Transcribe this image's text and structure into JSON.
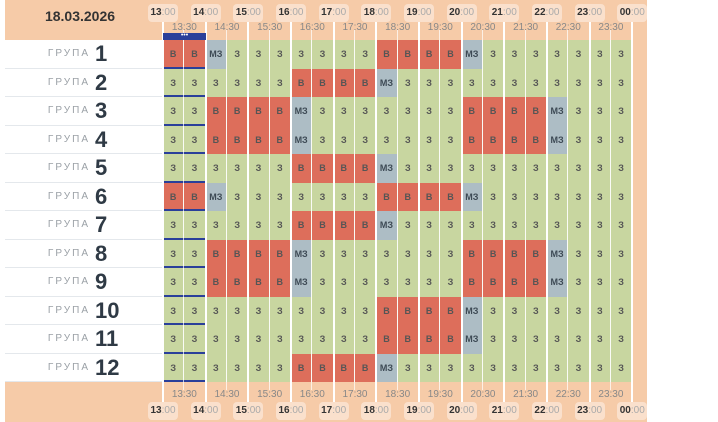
{
  "date": "18.03.2026",
  "group_label": "ГРУПА",
  "marker_label": "•••",
  "hours": [
    "13",
    "14",
    "15",
    "16",
    "17",
    "18",
    "19",
    "20",
    "21",
    "22",
    "23",
    "00"
  ],
  "hour_suffix": ":00",
  "half_hours": [
    "13:30",
    "14:30",
    "15:30",
    "16:30",
    "17:30",
    "18:30",
    "19:30",
    "20:30",
    "21:30",
    "22:30",
    "23:30"
  ],
  "legend": {
    "З": "Z",
    "В": "V",
    "МЗ": "M"
  },
  "colors": {
    "З": "#c8d6a0",
    "В": "#dd6e5b",
    "МЗ": "#adbdc5",
    "header": "#f6cba8",
    "marker": "#2a3f9a"
  },
  "groups": [
    {
      "num": "1",
      "cells": [
        "В",
        "В",
        "МЗ",
        "З",
        "З",
        "З",
        "З",
        "З",
        "З",
        "З",
        "В",
        "В",
        "В",
        "В",
        "МЗ",
        "З",
        "З",
        "З",
        "З",
        "З",
        "З",
        "З"
      ]
    },
    {
      "num": "2",
      "cells": [
        "З",
        "З",
        "З",
        "З",
        "З",
        "З",
        "В",
        "В",
        "В",
        "В",
        "МЗ",
        "З",
        "З",
        "З",
        "З",
        "З",
        "З",
        "З",
        "З",
        "З",
        "З",
        "З"
      ]
    },
    {
      "num": "3",
      "cells": [
        "З",
        "З",
        "В",
        "В",
        "В",
        "В",
        "МЗ",
        "З",
        "З",
        "З",
        "З",
        "З",
        "З",
        "З",
        "В",
        "В",
        "В",
        "В",
        "МЗ",
        "З",
        "З",
        "З"
      ]
    },
    {
      "num": "4",
      "cells": [
        "З",
        "З",
        "В",
        "В",
        "В",
        "В",
        "МЗ",
        "З",
        "З",
        "З",
        "З",
        "З",
        "З",
        "З",
        "В",
        "В",
        "В",
        "В",
        "МЗ",
        "З",
        "З",
        "З"
      ]
    },
    {
      "num": "5",
      "cells": [
        "З",
        "З",
        "З",
        "З",
        "З",
        "З",
        "В",
        "В",
        "В",
        "В",
        "МЗ",
        "З",
        "З",
        "З",
        "З",
        "З",
        "З",
        "З",
        "З",
        "З",
        "З",
        "З"
      ]
    },
    {
      "num": "6",
      "cells": [
        "В",
        "В",
        "МЗ",
        "З",
        "З",
        "З",
        "З",
        "З",
        "З",
        "З",
        "В",
        "В",
        "В",
        "В",
        "МЗ",
        "З",
        "З",
        "З",
        "З",
        "З",
        "З",
        "З"
      ]
    },
    {
      "num": "7",
      "cells": [
        "З",
        "З",
        "З",
        "З",
        "З",
        "З",
        "В",
        "В",
        "В",
        "В",
        "МЗ",
        "З",
        "З",
        "З",
        "З",
        "З",
        "З",
        "З",
        "З",
        "З",
        "З",
        "З"
      ]
    },
    {
      "num": "8",
      "cells": [
        "З",
        "З",
        "В",
        "В",
        "В",
        "В",
        "МЗ",
        "З",
        "З",
        "З",
        "З",
        "З",
        "З",
        "З",
        "В",
        "В",
        "В",
        "В",
        "МЗ",
        "З",
        "З",
        "З"
      ]
    },
    {
      "num": "9",
      "cells": [
        "З",
        "З",
        "В",
        "В",
        "В",
        "В",
        "МЗ",
        "З",
        "З",
        "З",
        "З",
        "З",
        "З",
        "З",
        "В",
        "В",
        "В",
        "В",
        "МЗ",
        "З",
        "З",
        "З"
      ]
    },
    {
      "num": "10",
      "cells": [
        "З",
        "З",
        "З",
        "З",
        "З",
        "З",
        "З",
        "З",
        "З",
        "З",
        "В",
        "В",
        "В",
        "В",
        "МЗ",
        "З",
        "З",
        "З",
        "З",
        "З",
        "З",
        "З"
      ]
    },
    {
      "num": "11",
      "cells": [
        "З",
        "З",
        "З",
        "З",
        "З",
        "З",
        "З",
        "З",
        "З",
        "З",
        "В",
        "В",
        "В",
        "В",
        "МЗ",
        "З",
        "З",
        "З",
        "З",
        "З",
        "З",
        "З"
      ]
    },
    {
      "num": "12",
      "cells": [
        "З",
        "З",
        "З",
        "З",
        "З",
        "З",
        "В",
        "В",
        "В",
        "В",
        "МЗ",
        "З",
        "З",
        "З",
        "З",
        "З",
        "З",
        "З",
        "З",
        "З",
        "З",
        "З"
      ]
    }
  ]
}
